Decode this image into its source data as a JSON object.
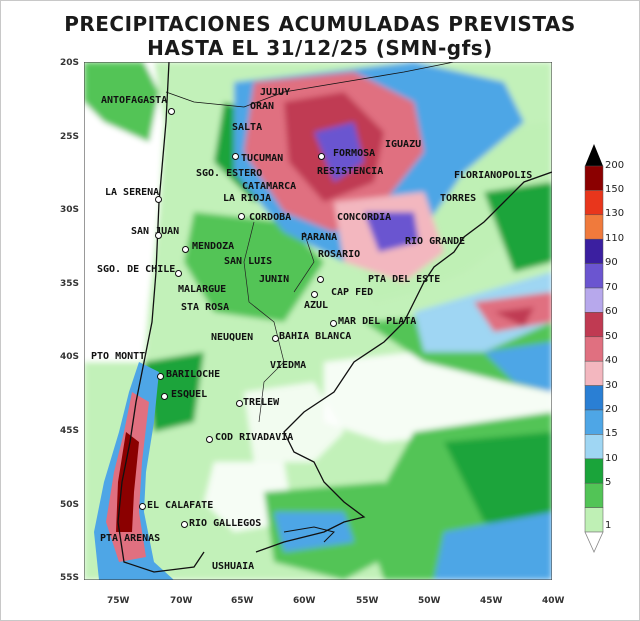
{
  "title": {
    "line1": "PRECIPITACIONES ACUMULADAS PREVISTAS",
    "line2": "HASTA EL 31/12/25 (SMN-gfs)"
  },
  "axes": {
    "lat_labels": [
      "20S",
      "25S",
      "30S",
      "35S",
      "40S",
      "45S",
      "50S",
      "55S"
    ],
    "lon_labels": [
      "75W",
      "70W",
      "65W",
      "60W",
      "55W",
      "50W",
      "45W",
      "40W"
    ]
  },
  "colorbar": {
    "levels": [
      "200",
      "150",
      "130",
      "110",
      "90",
      "70",
      "60",
      "50",
      "40",
      "30",
      "20",
      "15",
      "10",
      "5",
      "1"
    ],
    "colors": [
      "#8b0000",
      "#e8361c",
      "#f07a3c",
      "#3b1fa0",
      "#6b55d0",
      "#b7a8ec",
      "#c03a52",
      "#e07080",
      "#f3b7bf",
      "#2a7fd4",
      "#4ea6e6",
      "#9fd6f3",
      "#1aa43a",
      "#52c456",
      "#bff0b5"
    ]
  },
  "cities": [
    {
      "name": "ANTOFAGASTA"
    },
    {
      "name": "JUJUY"
    },
    {
      "name": "ORAN"
    },
    {
      "name": "SALTA"
    },
    {
      "name": "IGUAZU"
    },
    {
      "name": "TUCUMAN"
    },
    {
      "name": "FORMOSA"
    },
    {
      "name": "SGO. ESTERO"
    },
    {
      "name": "RESISTENCIA"
    },
    {
      "name": "FLORIANOPOLIS"
    },
    {
      "name": "LA SERENA"
    },
    {
      "name": "CATAMARCA"
    },
    {
      "name": "LA RIOJA"
    },
    {
      "name": "TORRES"
    },
    {
      "name": "CORDOBA"
    },
    {
      "name": "CONCORDIA"
    },
    {
      "name": "SAN JUAN"
    },
    {
      "name": "RIO GRANDE"
    },
    {
      "name": "MENDOZA"
    },
    {
      "name": "PARANA"
    },
    {
      "name": "SAN LUIS"
    },
    {
      "name": "ROSARIO"
    },
    {
      "name": "SGO. DE CHILE"
    },
    {
      "name": "JUNIN"
    },
    {
      "name": "PTA DEL ESTE"
    },
    {
      "name": "MALARGUE"
    },
    {
      "name": "CAP FED"
    },
    {
      "name": "STA ROSA"
    },
    {
      "name": "AZUL"
    },
    {
      "name": "MAR DEL PLATA"
    },
    {
      "name": "NEUQUEN"
    },
    {
      "name": "BAHIA BLANCA"
    },
    {
      "name": "PTO MONTT"
    },
    {
      "name": "VIEDMA"
    },
    {
      "name": "BARILOCHE"
    },
    {
      "name": "ESQUEL"
    },
    {
      "name": "TRELEW"
    },
    {
      "name": "COD RIVADAVIA"
    },
    {
      "name": "EL CALAFATE"
    },
    {
      "name": "RIO GALLEGOS"
    },
    {
      "name": "PTA ARENAS"
    },
    {
      "name": "USHUAIA"
    }
  ]
}
